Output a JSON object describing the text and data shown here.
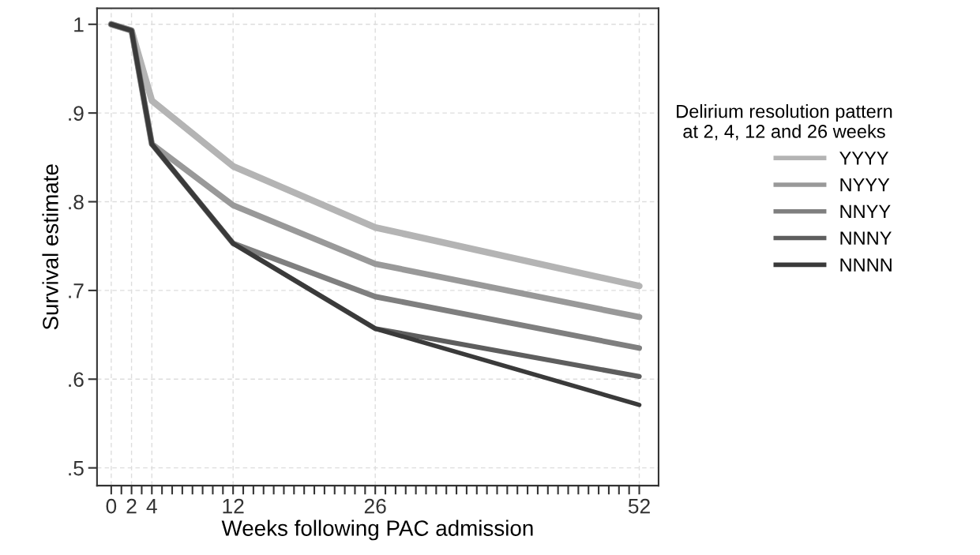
{
  "chart_data": {
    "type": "line",
    "xlabel": "Weeks following PAC admission",
    "ylabel": "Survival estimate",
    "legend_title": "Delirium resolution pattern\nat 2, 4, 12 and 26 weeks",
    "legend": "right",
    "grid": true,
    "marker": "none",
    "line_style": "solid",
    "x": [
      0,
      2,
      4,
      12,
      26,
      52
    ],
    "series": [
      {
        "name": "YYYY",
        "color": "#b4b4b4",
        "values": [
          1,
          0.993,
          0.914,
          0.84,
          0.771,
          0.705
        ]
      },
      {
        "name": "NYYY",
        "color": "#999999",
        "values": [
          1,
          0.993,
          0.865,
          0.796,
          0.73,
          0.67
        ]
      },
      {
        "name": "NNYY",
        "color": "#7f7f7f",
        "values": [
          1,
          0.993,
          0.865,
          0.753,
          0.693,
          0.635
        ]
      },
      {
        "name": "NNNY",
        "color": "#5e5e5e",
        "values": [
          1,
          0.993,
          0.865,
          0.753,
          0.657,
          0.603
        ]
      },
      {
        "name": "NNNN",
        "color": "#3a3a3a",
        "values": [
          1,
          0.993,
          0.865,
          0.753,
          0.657,
          0.571
        ]
      }
    ],
    "xlim": [
      -1.4,
      53.9
    ],
    "ylim": [
      0.48,
      1.018
    ],
    "xticks": [
      0,
      {
        "value": 1,
        "label": null
      },
      2,
      {
        "value": 3,
        "label": null
      },
      4,
      {
        "value": 5,
        "label": null
      },
      {
        "value": 6,
        "label": null
      },
      {
        "value": 7,
        "label": null
      },
      {
        "value": 8,
        "label": null
      },
      {
        "value": 9,
        "label": null
      },
      {
        "value": 10,
        "label": null
      },
      {
        "value": 11,
        "label": null
      },
      12,
      {
        "value": 13,
        "label": null
      },
      {
        "value": 14,
        "label": null
      },
      {
        "value": 15,
        "label": null
      },
      {
        "value": 16,
        "label": null
      },
      {
        "value": 17,
        "label": null
      },
      {
        "value": 18,
        "label": null
      },
      {
        "value": 19,
        "label": null
      },
      {
        "value": 20,
        "label": null
      },
      {
        "value": 21,
        "label": null
      },
      {
        "value": 22,
        "label": null
      },
      {
        "value": 23,
        "label": null
      },
      {
        "value": 24,
        "label": null
      },
      {
        "value": 25,
        "label": null
      },
      26,
      {
        "value": 27,
        "label": null
      },
      {
        "value": 28,
        "label": null
      },
      {
        "value": 29,
        "label": null
      },
      {
        "value": 30,
        "label": null
      },
      {
        "value": 31,
        "label": null
      },
      {
        "value": 32,
        "label": null
      },
      {
        "value": 33,
        "label": null
      },
      {
        "value": 34,
        "label": null
      },
      {
        "value": 35,
        "label": null
      },
      {
        "value": 36,
        "label": null
      },
      {
        "value": 37,
        "label": null
      },
      {
        "value": 38,
        "label": null
      },
      {
        "value": 39,
        "label": null
      },
      {
        "value": 40,
        "label": null
      },
      {
        "value": 41,
        "label": null
      },
      {
        "value": 42,
        "label": null
      },
      {
        "value": 43,
        "label": null
      },
      {
        "value": 44,
        "label": null
      },
      {
        "value": 45,
        "label": null
      },
      {
        "value": 46,
        "label": null
      },
      {
        "value": 47,
        "label": null
      },
      {
        "value": 48,
        "label": null
      },
      {
        "value": 49,
        "label": null
      },
      {
        "value": 50,
        "label": null
      },
      {
        "value": 51,
        "label": null
      },
      52
    ],
    "yticks": [
      {
        "value": 0.5,
        "label": ".5"
      },
      {
        "value": 0.6,
        "label": ".6"
      },
      {
        "value": 0.7,
        "label": ".7"
      },
      {
        "value": 0.8,
        "label": ".8"
      },
      {
        "value": 0.9,
        "label": ".9"
      },
      1
    ]
  }
}
